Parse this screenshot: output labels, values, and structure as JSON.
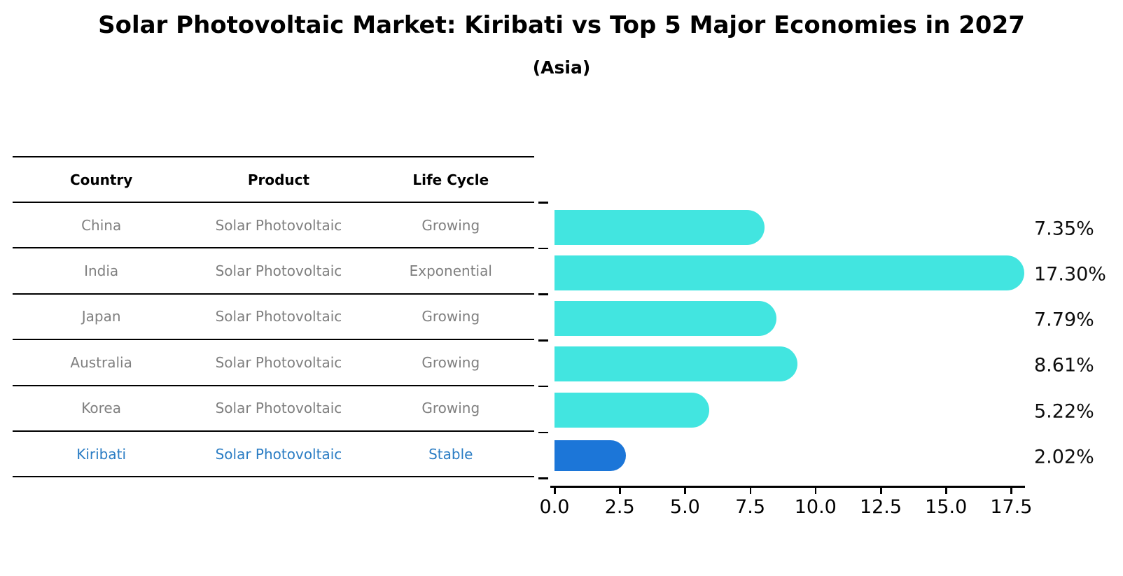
{
  "title": "Solar Photovoltaic Market: Kiribati vs Top 5 Major Economies in 2027",
  "subtitle": "(Asia)",
  "table": {
    "headers": [
      "Country",
      "Product",
      "Life Cycle"
    ],
    "rows": [
      {
        "country": "China",
        "product": "Solar Photovoltaic",
        "life_cycle": "Growing",
        "highlighted": false
      },
      {
        "country": "India",
        "product": "Solar Photovoltaic",
        "life_cycle": "Exponential",
        "highlighted": false
      },
      {
        "country": "Japan",
        "product": "Solar Photovoltaic",
        "life_cycle": "Growing",
        "highlighted": false
      },
      {
        "country": "Australia",
        "product": "Solar Photovoltaic",
        "life_cycle": "Growing",
        "highlighted": false
      },
      {
        "country": "Korea",
        "product": "Solar Photovoltaic",
        "life_cycle": "Growing",
        "highlighted": false
      },
      {
        "country": "Kiribati",
        "product": "Solar Photovoltaic",
        "life_cycle": "Stable",
        "highlighted": true
      }
    ]
  },
  "chart_data": {
    "type": "bar",
    "orientation": "horizontal",
    "title": "Solar Photovoltaic Market: Kiribati vs Top 5 Major Economies in 2027 (Asia)",
    "categories": [
      "China",
      "India",
      "Japan",
      "Australia",
      "Korea",
      "Kiribati"
    ],
    "values": [
      7.35,
      17.3,
      7.79,
      8.61,
      5.22,
      2.02
    ],
    "value_labels": [
      "7.35%",
      "17.30%",
      "7.79%",
      "8.61%",
      "5.22%",
      "2.02%"
    ],
    "x_ticks": [
      0.0,
      2.5,
      5.0,
      7.5,
      10.0,
      12.5,
      15.0,
      17.5
    ],
    "x_tick_labels": [
      "0.0",
      "2.5",
      "5.0",
      "7.5",
      "10.0",
      "12.5",
      "15.0",
      "17.5"
    ],
    "xlim": [
      0,
      18.15
    ],
    "grid": false,
    "legend": false,
    "bar_color": "#42e5e0",
    "highlight_bar_color": "#1c76d8",
    "highlight_index": 5
  },
  "colors": {
    "row_text": "#7f7f7f",
    "highlight_text": "#2b7dc4",
    "header_text": "#000000",
    "axis": "#000000",
    "background": "#ffffff"
  }
}
